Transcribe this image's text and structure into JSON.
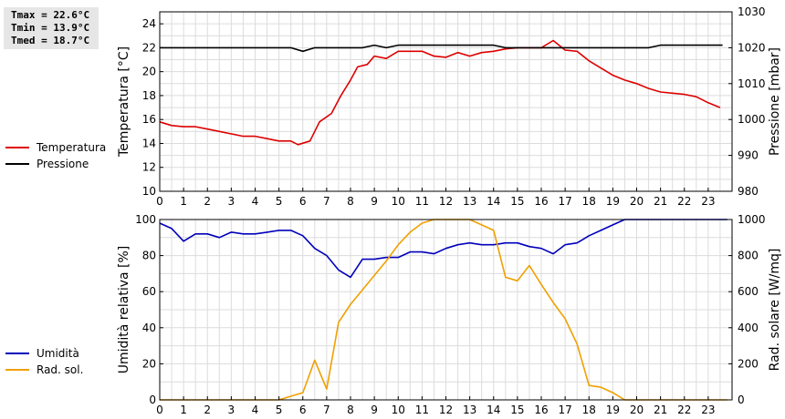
{
  "stats": {
    "tmax": "Tmax = 22.6°C",
    "tmin": "Tmin = 13.9°C",
    "tmed": "Tmed = 18.7°C"
  },
  "chart_data": [
    {
      "type": "line",
      "title": "",
      "xlabel": "",
      "ylabel": "Temperatura [°C]",
      "y2label": "Pressione [mbar]",
      "xlim": [
        0,
        24
      ],
      "ylim": [
        10,
        25
      ],
      "y2lim": [
        980,
        1030
      ],
      "xticks": [
        "0",
        "1",
        "2",
        "3",
        "4",
        "5",
        "6",
        "7",
        "8",
        "9",
        "10",
        "11",
        "12",
        "13",
        "14",
        "15",
        "16",
        "17",
        "18",
        "19",
        "20",
        "21",
        "22",
        "23"
      ],
      "yticks": [
        "10",
        "12",
        "14",
        "16",
        "18",
        "20",
        "22",
        "24"
      ],
      "y2ticks": [
        "980",
        "990",
        "1000",
        "1010",
        "1020",
        "1030"
      ],
      "grid": true,
      "legend_placement": "left",
      "series": [
        {
          "name": "Temperatura",
          "color": "#dd0000",
          "axis": "left",
          "points": [
            [
              0,
              15.8
            ],
            [
              0.5,
              15.5
            ],
            [
              1,
              15.4
            ],
            [
              1.5,
              15.4
            ],
            [
              2,
              15.2
            ],
            [
              2.5,
              15.0
            ],
            [
              3,
              14.8
            ],
            [
              3.5,
              14.6
            ],
            [
              4,
              14.6
            ],
            [
              4.5,
              14.4
            ],
            [
              5,
              14.2
            ],
            [
              5.5,
              14.2
            ],
            [
              5.8,
              13.9
            ],
            [
              6.3,
              14.2
            ],
            [
              6.7,
              15.8
            ],
            [
              7.2,
              16.5
            ],
            [
              7.6,
              18.0
            ],
            [
              8,
              19.3
            ],
            [
              8.3,
              20.4
            ],
            [
              8.7,
              20.6
            ],
            [
              9,
              21.3
            ],
            [
              9.5,
              21.1
            ],
            [
              10,
              21.7
            ],
            [
              10.5,
              21.7
            ],
            [
              11,
              21.7
            ],
            [
              11.5,
              21.3
            ],
            [
              12,
              21.2
            ],
            [
              12.5,
              21.6
            ],
            [
              13,
              21.3
            ],
            [
              13.5,
              21.6
            ],
            [
              14,
              21.7
            ],
            [
              14.5,
              21.9
            ],
            [
              15,
              22.0
            ],
            [
              15.5,
              22.0
            ],
            [
              16,
              22.0
            ],
            [
              16.5,
              22.6
            ],
            [
              17,
              21.8
            ],
            [
              17.5,
              21.7
            ],
            [
              18,
              20.9
            ],
            [
              18.5,
              20.3
            ],
            [
              19,
              19.7
            ],
            [
              19.5,
              19.3
            ],
            [
              20,
              19.0
            ],
            [
              20.5,
              18.6
            ],
            [
              21,
              18.3
            ],
            [
              21.5,
              18.2
            ],
            [
              22,
              18.1
            ],
            [
              22.5,
              17.9
            ],
            [
              23,
              17.4
            ],
            [
              23.5,
              17.0
            ]
          ]
        },
        {
          "name": "Pressione",
          "color": "#000000",
          "axis": "right",
          "points": [
            [
              0,
              1020
            ],
            [
              5,
              1020
            ],
            [
              5.5,
              1020
            ],
            [
              6,
              1019
            ],
            [
              6.5,
              1020
            ],
            [
              8.5,
              1020
            ],
            [
              9,
              1020.7
            ],
            [
              9.5,
              1020
            ],
            [
              10,
              1020.7
            ],
            [
              14,
              1020.7
            ],
            [
              14.5,
              1020
            ],
            [
              20.5,
              1020
            ],
            [
              21,
              1020.7
            ],
            [
              23.6,
              1020.7
            ]
          ]
        }
      ]
    },
    {
      "type": "line",
      "title": "",
      "xlabel": "",
      "ylabel": "Umidità relativa [%]",
      "y2label": "Rad. solare [W/mq]",
      "xlim": [
        0,
        24
      ],
      "ylim": [
        0,
        100
      ],
      "y2lim": [
        0,
        1000
      ],
      "xticks": [
        "0",
        "1",
        "2",
        "3",
        "4",
        "5",
        "6",
        "7",
        "8",
        "9",
        "10",
        "11",
        "12",
        "13",
        "14",
        "15",
        "16",
        "17",
        "18",
        "19",
        "20",
        "21",
        "22",
        "23"
      ],
      "yticks": [
        "0",
        "20",
        "40",
        "60",
        "80",
        "100"
      ],
      "y2ticks": [
        "0",
        "200",
        "400",
        "600",
        "800",
        "1000"
      ],
      "grid": true,
      "legend_placement": "left",
      "series": [
        {
          "name": "Umidità",
          "color": "#0000bb",
          "axis": "left",
          "points": [
            [
              0,
              98
            ],
            [
              0.5,
              95
            ],
            [
              1,
              88
            ],
            [
              1.5,
              92
            ],
            [
              2,
              92
            ],
            [
              2.5,
              90
            ],
            [
              3,
              93
            ],
            [
              3.5,
              92
            ],
            [
              4,
              92
            ],
            [
              4.5,
              93
            ],
            [
              5,
              94
            ],
            [
              5.5,
              94
            ],
            [
              6,
              91
            ],
            [
              6.5,
              84
            ],
            [
              7,
              80
            ],
            [
              7.5,
              72
            ],
            [
              8,
              68
            ],
            [
              8.5,
              78
            ],
            [
              9,
              78
            ],
            [
              9.5,
              79
            ],
            [
              10,
              79
            ],
            [
              10.5,
              82
            ],
            [
              11,
              82
            ],
            [
              11.5,
              81
            ],
            [
              12,
              84
            ],
            [
              12.5,
              86
            ],
            [
              13,
              87
            ],
            [
              13.5,
              86
            ],
            [
              14,
              86
            ],
            [
              14.5,
              87
            ],
            [
              15,
              87
            ],
            [
              15.5,
              85
            ],
            [
              16,
              84
            ],
            [
              16.5,
              81
            ],
            [
              17,
              86
            ],
            [
              17.5,
              87
            ],
            [
              18,
              91
            ],
            [
              18.5,
              94
            ],
            [
              19,
              97
            ],
            [
              19.5,
              100
            ],
            [
              23.8,
              100
            ]
          ]
        },
        {
          "name": "Rad. sol.",
          "color": "#f0a000",
          "axis": "right",
          "points": [
            [
              0,
              0
            ],
            [
              5,
              0
            ],
            [
              5.5,
              20
            ],
            [
              6,
              40
            ],
            [
              6.5,
              220
            ],
            [
              7,
              60
            ],
            [
              7.5,
              430
            ],
            [
              8,
              530
            ],
            [
              8.5,
              610
            ],
            [
              9,
              690
            ],
            [
              9.5,
              770
            ],
            [
              10,
              860
            ],
            [
              10.5,
              930
            ],
            [
              11,
              980
            ],
            [
              11.5,
              1020
            ],
            [
              12,
              1040
            ],
            [
              12.5,
              1040
            ],
            [
              13,
              1000
            ],
            [
              13.5,
              970
            ],
            [
              14,
              940
            ],
            [
              14.5,
              680
            ],
            [
              15,
              660
            ],
            [
              15.5,
              745
            ],
            [
              16,
              640
            ],
            [
              16.5,
              540
            ],
            [
              17,
              450
            ],
            [
              17.5,
              310
            ],
            [
              18,
              80
            ],
            [
              18.5,
              70
            ],
            [
              19,
              40
            ],
            [
              19.5,
              0
            ],
            [
              23.8,
              0
            ]
          ]
        }
      ]
    }
  ]
}
